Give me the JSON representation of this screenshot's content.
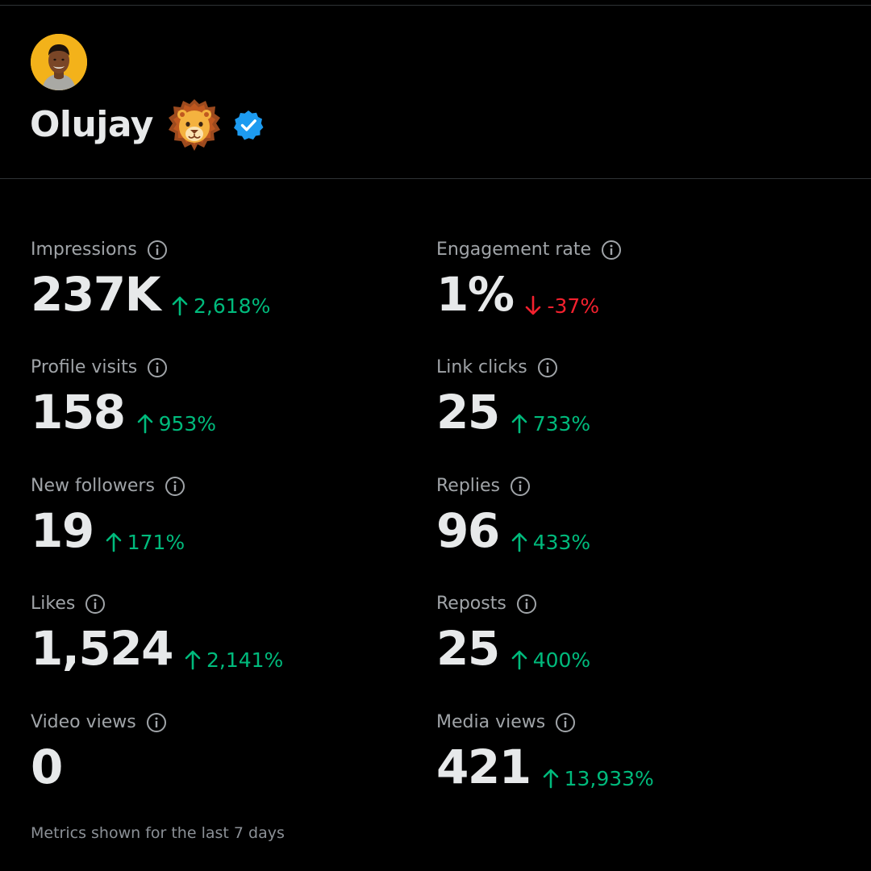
{
  "profile": {
    "display_name": "Olujay",
    "name_emoji": "lion-face-emoji",
    "verified": true,
    "verified_color": "#1d9bf0",
    "avatar_bg_color": "#f3b21a"
  },
  "metrics": {
    "impressions": {
      "label": "Impressions",
      "value": "237K",
      "change": "2,618%",
      "direction": "up"
    },
    "engagement_rate": {
      "label": "Engagement rate",
      "value": "1%",
      "change": "-37%",
      "direction": "down"
    },
    "profile_visits": {
      "label": "Profile visits",
      "value": "158",
      "change": "953%",
      "direction": "up"
    },
    "link_clicks": {
      "label": "Link clicks",
      "value": "25",
      "change": "733%",
      "direction": "up"
    },
    "new_followers": {
      "label": "New followers",
      "value": "19",
      "change": "171%",
      "direction": "up"
    },
    "replies": {
      "label": "Replies",
      "value": "96",
      "change": "433%",
      "direction": "up"
    },
    "likes": {
      "label": "Likes",
      "value": "1,524",
      "change": "2,141%",
      "direction": "up"
    },
    "reposts": {
      "label": "Reposts",
      "value": "25",
      "change": "400%",
      "direction": "up"
    },
    "video_views": {
      "label": "Video views",
      "value": "0"
    },
    "media_views": {
      "label": "Media views",
      "value": "421",
      "change": "13,933%",
      "direction": "up"
    }
  },
  "colors": {
    "background": "#000000",
    "primary_text": "#e7e9ea",
    "secondary_text": "#a0a4a8",
    "positive": "#00ba7c",
    "negative": "#f4212e",
    "divider": "#2f3336"
  },
  "icons": {
    "info": "info-circle-icon",
    "up": "arrow-up-icon",
    "down": "arrow-down-icon"
  },
  "footer": {
    "note": "Metrics shown for the last 7 days"
  }
}
